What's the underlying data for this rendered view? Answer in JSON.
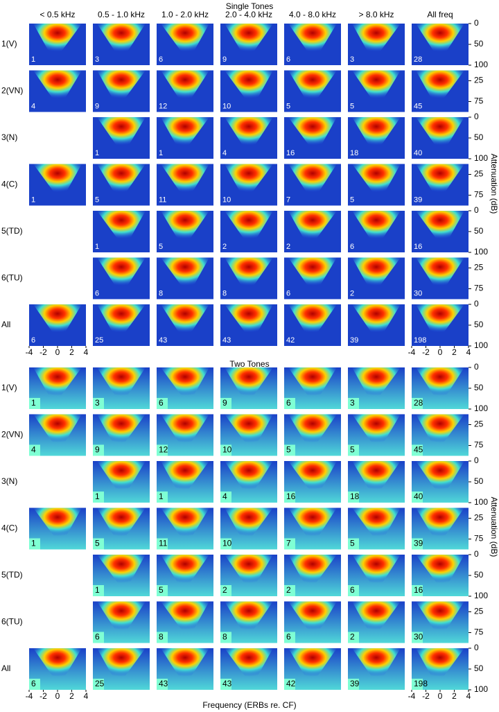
{
  "columns": [
    "< 0.5 kHz",
    "0.5 - 1.0 kHz",
    "1.0 - 2.0 kHz",
    "2.0 - 4.0 kHz",
    "4.0 - 8.0 kHz",
    "> 8.0 kHz",
    "All freq"
  ],
  "rows": [
    "1(V)",
    "2(VN)",
    "3(N)",
    "4(C)",
    "5(TD)",
    "6(TU)",
    "All"
  ],
  "sections": [
    {
      "title": "Single Tones",
      "counts": [
        [
          1,
          3,
          6,
          9,
          6,
          3,
          28
        ],
        [
          4,
          9,
          12,
          10,
          5,
          5,
          45
        ],
        [
          null,
          1,
          1,
          4,
          16,
          18,
          40
        ],
        [
          1,
          5,
          11,
          10,
          7,
          5,
          39
        ],
        [
          null,
          1,
          5,
          2,
          2,
          6,
          16
        ],
        [
          null,
          6,
          8,
          8,
          6,
          2,
          30
        ],
        [
          6,
          25,
          43,
          43,
          42,
          39,
          198
        ]
      ]
    },
    {
      "title": "Two Tones",
      "counts": [
        [
          1,
          3,
          6,
          9,
          6,
          3,
          28
        ],
        [
          4,
          9,
          12,
          10,
          5,
          5,
          45
        ],
        [
          null,
          1,
          1,
          4,
          16,
          18,
          40
        ],
        [
          1,
          5,
          11,
          10,
          7,
          5,
          39
        ],
        [
          null,
          1,
          5,
          2,
          2,
          6,
          16
        ],
        [
          null,
          6,
          8,
          8,
          6,
          2,
          30
        ],
        [
          6,
          25,
          43,
          43,
          42,
          39,
          198
        ]
      ]
    }
  ],
  "x_ticks": [
    -4,
    -2,
    0,
    2,
    4
  ],
  "y_ticks_odd": [
    0,
    50,
    100
  ],
  "y_ticks_even": [
    25,
    75
  ],
  "x_label": "Frequency (ERBs re. CF)",
  "y_label": "Attenuation (dB)"
}
